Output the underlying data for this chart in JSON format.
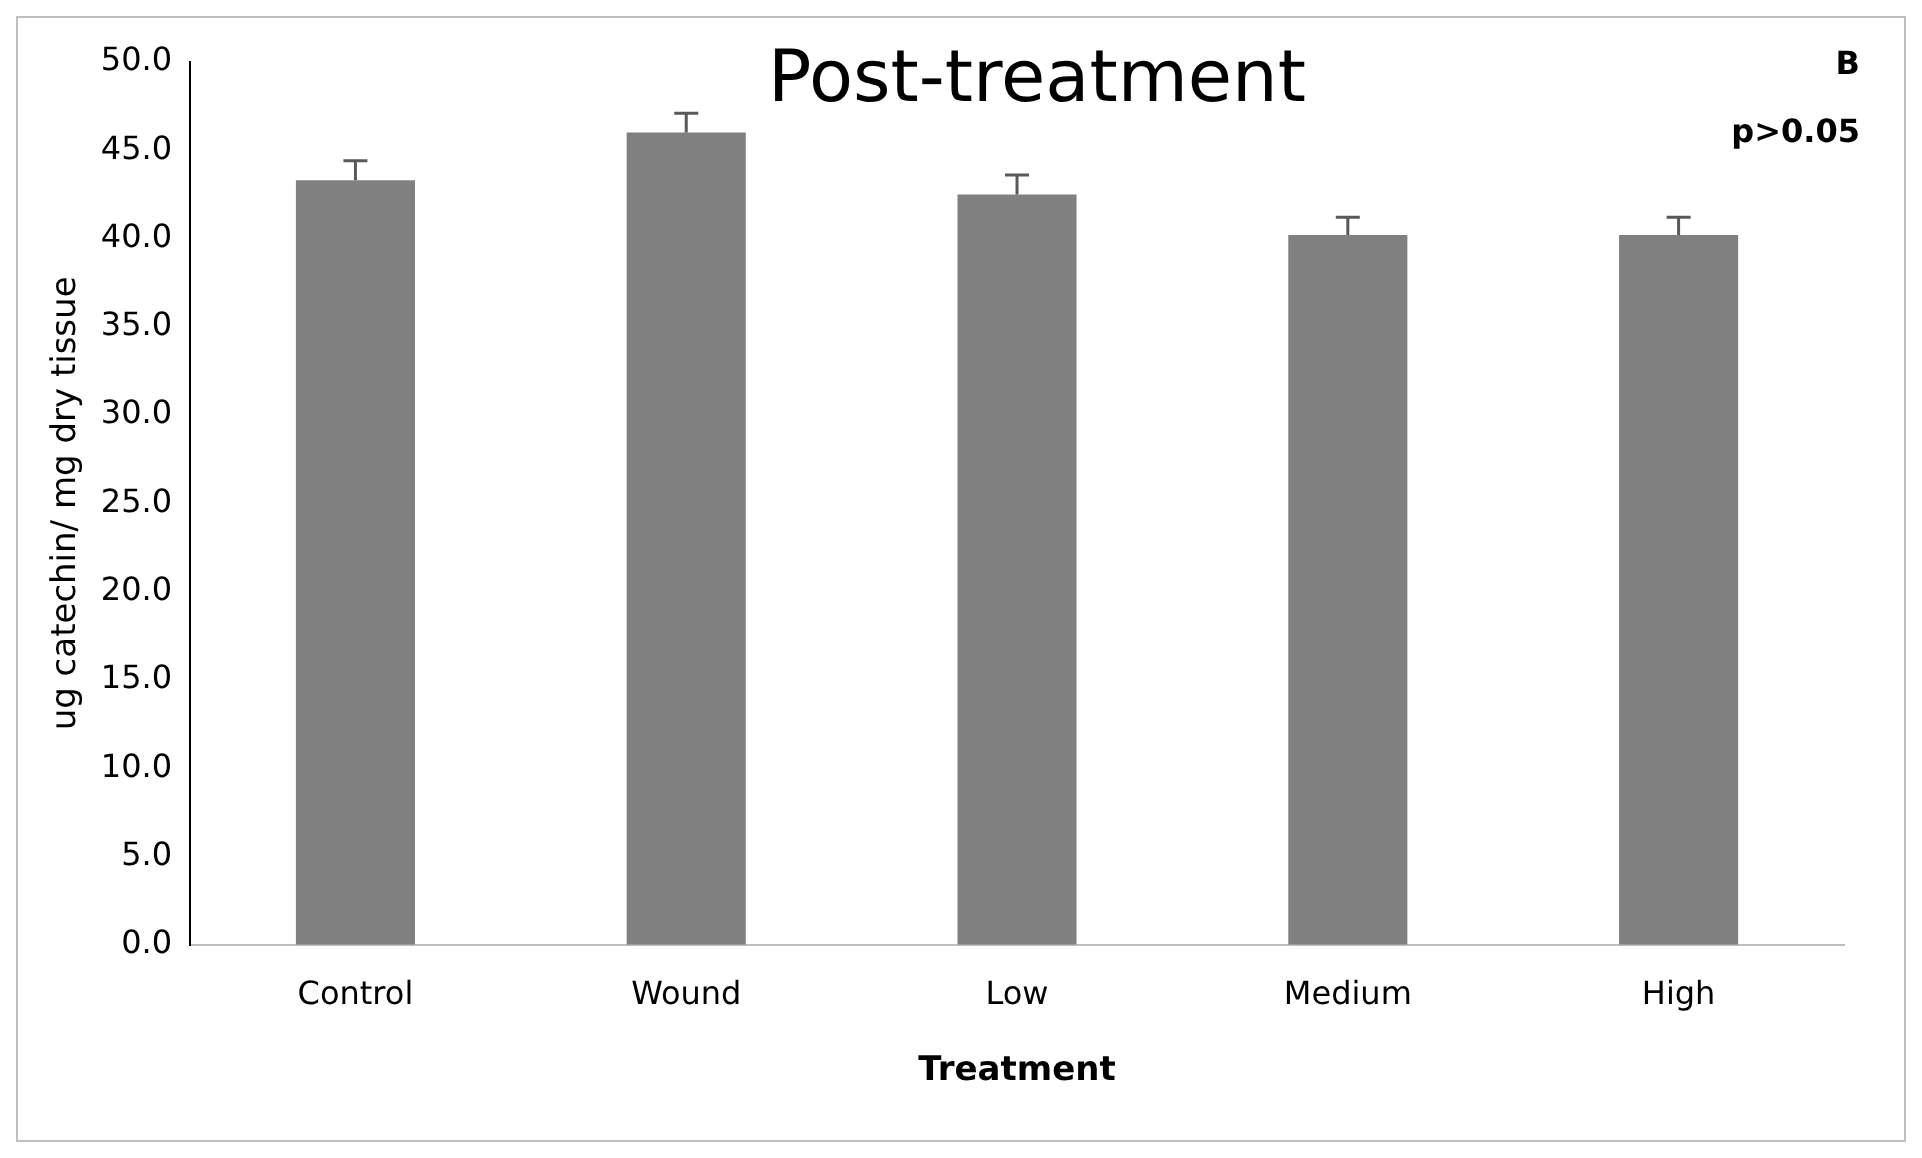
{
  "chart_data": {
    "type": "bar",
    "title": "Post-treatment",
    "xlabel": "Treatment",
    "ylabel": "ug catechin/ mg dry tissue",
    "categories": [
      "Control",
      "Wound",
      "Low",
      "Medium",
      "High"
    ],
    "values": [
      43.3,
      46.0,
      42.5,
      40.2,
      40.2
    ],
    "errors": [
      1.1,
      1.1,
      1.1,
      1.0,
      1.0
    ],
    "color": "#808080",
    "ylim": [
      0,
      50
    ],
    "yticks": [
      {
        "value": 0,
        "label": "0.0"
      },
      {
        "value": 5,
        "label": "5.0"
      },
      {
        "value": 10,
        "label": "10.0"
      },
      {
        "value": 15,
        "label": "15.0"
      },
      {
        "value": 20,
        "label": "20.0"
      },
      {
        "value": 25,
        "label": "25.0"
      },
      {
        "value": 30,
        "label": "30.0"
      },
      {
        "value": 35,
        "label": "35.0"
      },
      {
        "value": 40,
        "label": "40.0"
      },
      {
        "value": 45,
        "label": "45.0"
      },
      {
        "value": 50,
        "label": "50.0"
      }
    ],
    "annotations": [
      "B",
      "p>0.05"
    ],
    "grid": false,
    "legend": false
  }
}
